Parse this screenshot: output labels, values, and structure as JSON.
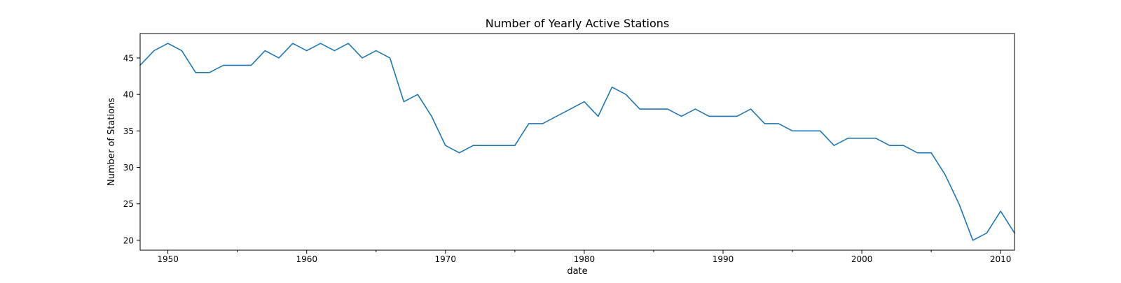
{
  "chart_data": {
    "type": "line",
    "title": "Number of Yearly Active Stations",
    "xlabel": "date",
    "ylabel": "Number of Stations",
    "xlim": [
      1948,
      2011
    ],
    "ylim": [
      18.65,
      48.35
    ],
    "xticks": [
      1950,
      1960,
      1970,
      1980,
      1990,
      2000,
      2010
    ],
    "xticks_minor": [
      1955,
      1965,
      1975,
      1985,
      1995,
      2005
    ],
    "yticks": [
      20,
      25,
      30,
      35,
      40,
      45
    ],
    "grid": false,
    "line_color": "#1f77b4",
    "x": [
      1948,
      1949,
      1950,
      1951,
      1952,
      1953,
      1954,
      1955,
      1956,
      1957,
      1958,
      1959,
      1960,
      1961,
      1962,
      1963,
      1964,
      1965,
      1966,
      1967,
      1968,
      1969,
      1970,
      1971,
      1972,
      1973,
      1974,
      1975,
      1976,
      1977,
      1978,
      1979,
      1980,
      1981,
      1982,
      1983,
      1984,
      1985,
      1986,
      1987,
      1988,
      1989,
      1990,
      1991,
      1992,
      1993,
      1994,
      1995,
      1996,
      1997,
      1998,
      1999,
      2000,
      2001,
      2002,
      2003,
      2004,
      2005,
      2006,
      2007,
      2008,
      2009,
      2010,
      2011
    ],
    "y": [
      44,
      46,
      47,
      46,
      43,
      43,
      44,
      44,
      44,
      46,
      45,
      47,
      46,
      47,
      46,
      47,
      45,
      46,
      45,
      39,
      40,
      37,
      33,
      32,
      33,
      33,
      33,
      33,
      36,
      36,
      37,
      38,
      39,
      37,
      41,
      40,
      38,
      38,
      38,
      37,
      38,
      37,
      37,
      37,
      38,
      36,
      36,
      35,
      35,
      35,
      33,
      34,
      34,
      34,
      33,
      33,
      32,
      32,
      29,
      25,
      20,
      21,
      24,
      21
    ]
  }
}
